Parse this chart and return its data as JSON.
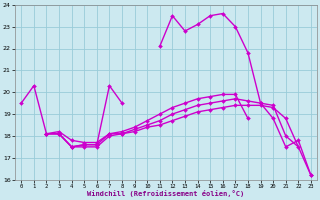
{
  "title": "",
  "xlabel": "Windchill (Refroidissement éolien,°C)",
  "xlim": [
    -0.5,
    23.5
  ],
  "ylim": [
    16,
    24
  ],
  "yticks": [
    16,
    17,
    18,
    19,
    20,
    21,
    22,
    23,
    24
  ],
  "xticks": [
    0,
    1,
    2,
    3,
    4,
    5,
    6,
    7,
    8,
    9,
    10,
    11,
    12,
    13,
    14,
    15,
    16,
    17,
    18,
    19,
    20,
    21,
    22,
    23
  ],
  "background_color": "#cce9f0",
  "grid_color": "#99ccd9",
  "line_color": "#cc00cc",
  "line_width": 1.0,
  "marker": "D",
  "marker_size": 2.0,
  "curves": [
    {
      "segments": [
        {
          "x": [
            0,
            1,
            2,
            3,
            4,
            5,
            6,
            7,
            8
          ],
          "y": [
            19.5,
            20.3,
            18.1,
            18.1,
            17.5,
            17.6,
            17.6,
            20.3,
            19.5
          ]
        },
        {
          "x": [
            11,
            12,
            13,
            14,
            15,
            16,
            17,
            18,
            19,
            20,
            21,
            22,
            23
          ],
          "y": [
            22.1,
            23.5,
            22.8,
            23.1,
            23.5,
            23.6,
            23.0,
            21.8,
            19.5,
            18.8,
            17.5,
            17.8,
            16.2
          ]
        }
      ]
    },
    {
      "segments": [
        {
          "x": [
            2,
            3,
            4,
            5,
            6,
            7,
            8,
            9,
            10,
            11,
            12,
            13,
            14,
            15,
            16,
            17,
            18,
            19,
            20,
            21,
            22
          ],
          "y": [
            18.1,
            18.1,
            17.5,
            17.6,
            17.6,
            18.1,
            18.1,
            18.3,
            18.5,
            18.7,
            19.0,
            19.2,
            19.4,
            19.5,
            19.6,
            19.7,
            19.6,
            19.5,
            19.4,
            18.0,
            17.5
          ]
        }
      ]
    },
    {
      "segments": [
        {
          "x": [
            2,
            3,
            4,
            5,
            6,
            7,
            8,
            9,
            10,
            11,
            12,
            13,
            14,
            15,
            16,
            17,
            18
          ],
          "y": [
            18.1,
            18.2,
            17.8,
            17.7,
            17.7,
            18.1,
            18.2,
            18.4,
            18.7,
            19.0,
            19.3,
            19.5,
            19.7,
            19.8,
            19.9,
            19.9,
            18.8
          ]
        }
      ]
    },
    {
      "segments": [
        {
          "x": [
            2,
            3,
            4,
            5,
            6,
            7,
            8,
            9,
            10,
            11,
            12,
            13,
            14,
            15,
            16,
            17,
            18,
            19,
            20,
            21,
            23
          ],
          "y": [
            18.1,
            18.1,
            17.5,
            17.5,
            17.5,
            18.0,
            18.1,
            18.2,
            18.4,
            18.5,
            18.7,
            18.9,
            19.1,
            19.2,
            19.3,
            19.4,
            19.4,
            19.4,
            19.3,
            18.8,
            16.2
          ]
        }
      ]
    }
  ]
}
